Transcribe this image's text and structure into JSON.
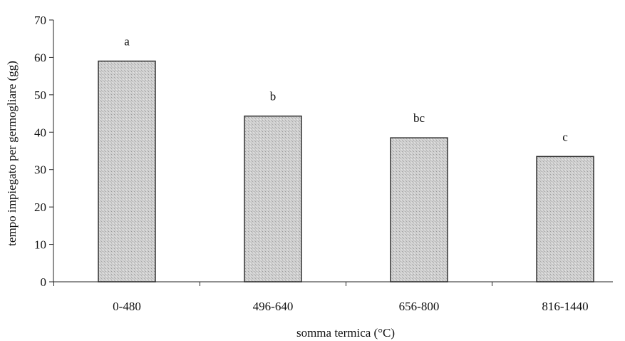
{
  "chart_data": {
    "type": "bar",
    "categories": [
      "0-480",
      "496-640",
      "656-800",
      "816-1440"
    ],
    "values": [
      59,
      44.3,
      38.5,
      33.5
    ],
    "significance_letters": [
      "a",
      "b",
      "bc",
      "c"
    ],
    "xlabel": "somma termica (°C)",
    "ylabel": "tempo impiegato per germogliare (gg)",
    "ylim": [
      0,
      70
    ],
    "yticks": [
      0,
      10,
      20,
      30,
      40,
      50,
      60,
      70
    ],
    "grid": false,
    "legend": "none",
    "bar_color": "#c8c8c8"
  }
}
